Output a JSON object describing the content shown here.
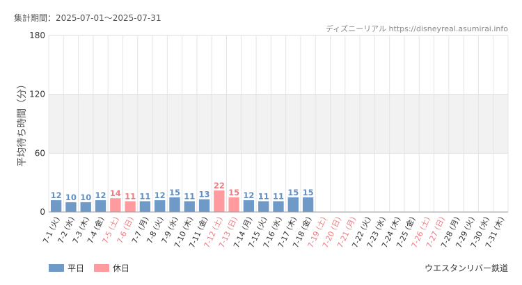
{
  "header": {
    "period_label": "集計期間：2025-07-01〜2025-07-31",
    "source_label": "ディズニーリアル https://disneyreal.asumirai.info"
  },
  "footer": {
    "attraction_name": "ウエスタンリバー鉄道"
  },
  "colors": {
    "weekday": "#6f9ac8",
    "holiday": "#ff9a9e",
    "weekday_label": "#5f8fc5",
    "holiday_label": "#f07b82",
    "band": "#f2f2f2",
    "grid": "#e4e4e4",
    "axis_text": "#333333",
    "title_text": "#555555",
    "source_text": "#888888"
  },
  "chart_data": {
    "type": "bar",
    "ylabel": "平均待ち時間（分）",
    "ylim": [
      0,
      180
    ],
    "yticks": [
      0,
      60,
      120,
      180
    ],
    "legend": {
      "placement": "bottom-left",
      "entries": [
        {
          "key": "weekday",
          "label": "平日"
        },
        {
          "key": "holiday",
          "label": "休日"
        }
      ]
    },
    "categories": [
      "7-1 (火)",
      "7-2 (水)",
      "7-3 (木)",
      "7-4 (金)",
      "7-5 (土)",
      "7-6 (日)",
      "7-7 (月)",
      "7-8 (火)",
      "7-9 (水)",
      "7-10 (木)",
      "7-11 (金)",
      "7-12 (土)",
      "7-13 (日)",
      "7-14 (月)",
      "7-15 (火)",
      "7-16 (水)",
      "7-17 (木)",
      "7-18 (金)",
      "7-19 (土)",
      "7-20 (日)",
      "7-21 (月)",
      "7-22 (火)",
      "7-23 (水)",
      "7-24 (木)",
      "7-25 (金)",
      "7-26 (土)",
      "7-27 (日)",
      "7-28 (月)",
      "7-29 (火)",
      "7-30 (水)",
      "7-31 (木)"
    ],
    "day_type": [
      "weekday",
      "weekday",
      "weekday",
      "weekday",
      "holiday",
      "holiday",
      "weekday",
      "weekday",
      "weekday",
      "weekday",
      "weekday",
      "holiday",
      "holiday",
      "weekday",
      "weekday",
      "weekday",
      "weekday",
      "weekday",
      "holiday",
      "holiday",
      "holiday",
      "weekday",
      "weekday",
      "weekday",
      "weekday",
      "holiday",
      "holiday",
      "weekday",
      "weekday",
      "weekday",
      "weekday"
    ],
    "values": [
      12,
      10,
      10,
      12,
      14,
      11,
      11,
      12,
      15,
      11,
      13,
      22,
      15,
      12,
      11,
      11,
      15,
      15,
      null,
      null,
      null,
      null,
      null,
      null,
      null,
      null,
      null,
      null,
      null,
      null,
      null
    ]
  }
}
